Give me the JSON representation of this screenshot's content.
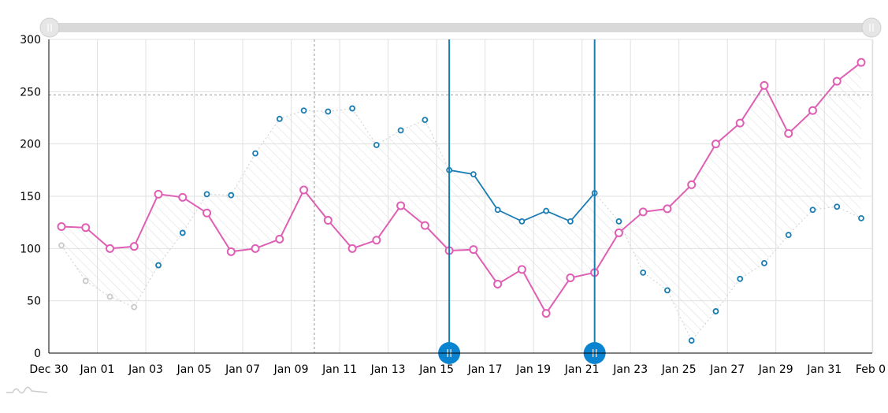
{
  "chart_data": {
    "type": "line",
    "x_axis": {
      "type": "date",
      "labels": [
        "Dec 30",
        "Jan 01",
        "Jan 03",
        "Jan 05",
        "Jan 07",
        "Jan 09",
        "Jan 11",
        "Jan 13",
        "Jan 15",
        "Jan 17",
        "Jan 19",
        "Jan 21",
        "Jan 23",
        "Jan 25",
        "Jan 27",
        "Jan 29",
        "Jan 31",
        "Feb 0"
      ]
    },
    "y_axis": {
      "min": 0,
      "max": 300,
      "step": 50,
      "labels": [
        "0",
        "50",
        "100",
        "150",
        "200",
        "250",
        "300"
      ]
    },
    "grid": true,
    "x": [
      "Dec 30",
      "Dec 31",
      "Jan 01",
      "Jan 02",
      "Jan 03",
      "Jan 04",
      "Jan 05",
      "Jan 06",
      "Jan 07",
      "Jan 08",
      "Jan 09",
      "Jan 10",
      "Jan 11",
      "Jan 12",
      "Jan 13",
      "Jan 14",
      "Jan 15",
      "Jan 16",
      "Jan 17",
      "Jan 18",
      "Jan 19",
      "Jan 20",
      "Jan 21",
      "Jan 22",
      "Jan 23",
      "Jan 24",
      "Jan 25",
      "Jan 26",
      "Jan 27",
      "Jan 28",
      "Jan 29",
      "Jan 30",
      "Jan 31",
      "Feb 01"
    ],
    "series": [
      {
        "color": "#de5fb4",
        "values": [
          121,
          120,
          100,
          102,
          152,
          149,
          134,
          97,
          100,
          109,
          156,
          127,
          100,
          108,
          141,
          122,
          98,
          99,
          66,
          80,
          38,
          72,
          77,
          115,
          135,
          138,
          161,
          200,
          220,
          256,
          210,
          232,
          260,
          278
        ]
      },
      {
        "color": "#1a7db3",
        "values": [
          103,
          69,
          54,
          44,
          84,
          115,
          152,
          151,
          191,
          224,
          232,
          231,
          234,
          199,
          213,
          223,
          175,
          171,
          137,
          126,
          136,
          126,
          153,
          126,
          77,
          60,
          12,
          40,
          71,
          86,
          113,
          137,
          140,
          129
        ]
      }
    ],
    "selected_range": [
      "Jan 15",
      "Jan 21"
    ],
    "cursor": {
      "x": "Jan 09",
      "y": 247
    }
  }
}
